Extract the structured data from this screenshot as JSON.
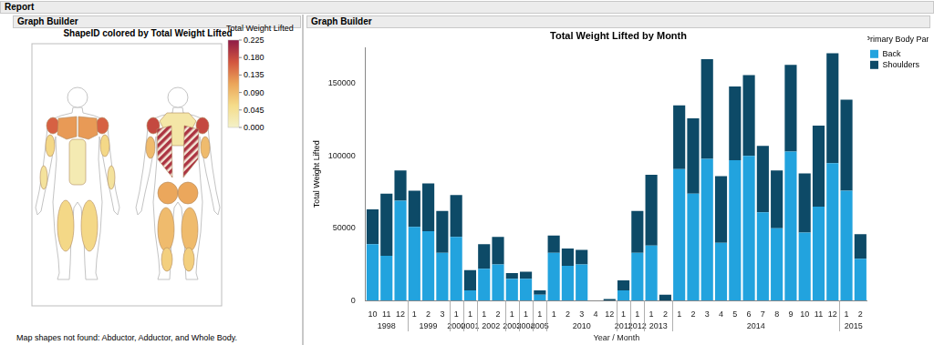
{
  "report": {
    "title": "Report",
    "panel_titles": [
      "Graph Builder",
      "Graph Builder"
    ],
    "note": "Map shapes not found: Abductor, Adductor, and Whole Body."
  },
  "chart_data": [
    {
      "type": "map",
      "title": "ShapeID colored by Total Weight Lifted",
      "color_title": "Total Weight Lifted",
      "color_range": [
        0,
        0.225
      ],
      "color_ticks": [
        {
          "value": 0,
          "label": "0.000"
        },
        {
          "value": 0.045,
          "label": "0.045"
        },
        {
          "value": 0.09,
          "label": "0.090"
        },
        {
          "value": 0.135,
          "label": "0.135"
        },
        {
          "value": 0.18,
          "label": "0.180"
        },
        {
          "value": 0.225,
          "label": "0.225"
        }
      ],
      "values": [
        0.16,
        0.12,
        0.02,
        0.06,
        0.04,
        0.06,
        0.03,
        0.18,
        0.2,
        0.09,
        0.11,
        0.09,
        0.07
      ]
    },
    {
      "type": "bar",
      "title": "Total Weight Lifted by Month",
      "x_label": "Year / Month",
      "y_label": "Total Weight Lifted",
      "legend_title": "Primary Body Part",
      "year_groups": [
        {
          "year": "1998",
          "months": [
            "10",
            "11",
            "12"
          ]
        },
        {
          "year": "1999",
          "months": [
            "1",
            "2",
            "3"
          ]
        },
        {
          "year": "2000",
          "months": [
            "1"
          ]
        },
        {
          "year": "2001",
          "months": [
            "1"
          ]
        },
        {
          "year": "2002",
          "months": [
            "1",
            "2"
          ]
        },
        {
          "year": "2003",
          "months": [
            "1"
          ]
        },
        {
          "year": "2004",
          "months": [
            "1"
          ]
        },
        {
          "year": "2005",
          "months": [
            "1"
          ]
        },
        {
          "year": "2010",
          "months": [
            "1",
            "2",
            "3",
            "4",
            "12"
          ]
        },
        {
          "year": "2011",
          "months": [
            "1"
          ]
        },
        {
          "year": "2012",
          "months": [
            "1"
          ]
        },
        {
          "year": "2013",
          "months": [
            "1",
            "2"
          ]
        },
        {
          "year": "2014",
          "months": [
            "1",
            "2",
            "3",
            "4",
            "5",
            "6",
            "7",
            "8",
            "9",
            "10",
            "11",
            "12"
          ]
        },
        {
          "year": "2015",
          "months": [
            "1",
            "2"
          ]
        }
      ],
      "series": [
        {
          "name": "Back",
          "color": "#22a3de",
          "values": [
            39000,
            31000,
            69000,
            51000,
            48000,
            33000,
            44000,
            7000,
            22000,
            25000,
            15000,
            15000,
            4000,
            33000,
            24000,
            25000,
            0,
            0,
            7000,
            33000,
            38000,
            0,
            91000,
            74000,
            98000,
            40000,
            97000,
            100000,
            61000,
            50000,
            103000,
            47000,
            65000,
            95000,
            76000,
            29000
          ]
        },
        {
          "name": "Shoulders",
          "color": "#0d4a67",
          "values": [
            24000,
            43000,
            21000,
            25000,
            33000,
            29000,
            29000,
            14000,
            17000,
            19000,
            4000,
            5000,
            3000,
            12000,
            12000,
            10000,
            0,
            1000,
            7000,
            29000,
            49000,
            4000,
            44000,
            52000,
            69000,
            46000,
            51000,
            56000,
            46000,
            40000,
            60000,
            41000,
            56000,
            76000,
            63000,
            17000
          ]
        }
      ],
      "ylim": [
        0,
        175000
      ],
      "yticks": [
        0,
        50000,
        100000,
        150000
      ],
      "stacked": true,
      "grid": false,
      "legend": "right"
    }
  ]
}
